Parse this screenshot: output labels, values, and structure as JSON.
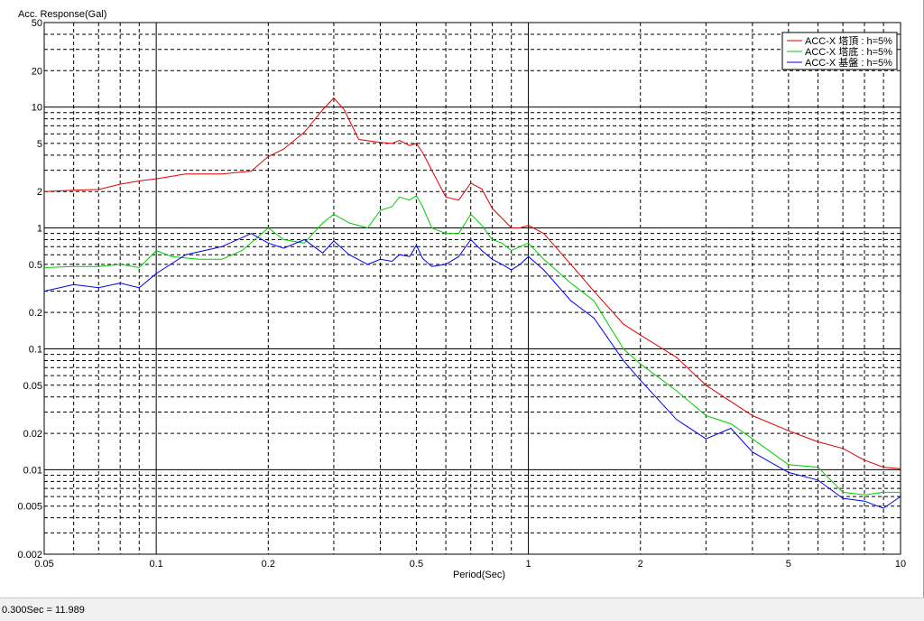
{
  "chart_data": {
    "type": "line",
    "ylabel": "Acc. Response(Gal)",
    "xlabel": "Period(Sec)",
    "xscale": "log",
    "yscale": "log",
    "xlim": [
      0.05,
      10
    ],
    "ylim": [
      0.002,
      50
    ],
    "grid": true,
    "legend_position": "top-right",
    "x_ticks": [
      0.05,
      0.1,
      0.2,
      0.5,
      1,
      2,
      5,
      10
    ],
    "x_tick_labels": [
      "0.05",
      "0.1",
      "0.2",
      "0.5",
      "1",
      "2",
      "5",
      "10"
    ],
    "y_ticks": [
      50,
      20,
      10,
      5,
      2,
      1,
      0.5,
      0.2,
      0.1,
      0.05,
      0.02,
      0.01,
      0.005,
      0.002
    ],
    "y_tick_labels": [
      "50",
      "20",
      "10",
      "5",
      "2",
      "1",
      "0.5",
      "0.2",
      "0.1",
      "0.05",
      "0.02",
      "0.01",
      "0.005",
      "0.002"
    ],
    "series": [
      {
        "name": "ACC-X 塔頂 : h=5%",
        "color": "#e00000",
        "x": [
          0.05,
          0.06,
          0.07,
          0.08,
          0.09,
          0.1,
          0.12,
          0.15,
          0.18,
          0.2,
          0.22,
          0.25,
          0.28,
          0.3,
          0.32,
          0.35,
          0.4,
          0.43,
          0.45,
          0.48,
          0.5,
          0.52,
          0.55,
          0.6,
          0.65,
          0.7,
          0.75,
          0.8,
          0.85,
          0.9,
          0.95,
          1,
          1.1,
          1.3,
          1.5,
          1.8,
          2,
          2.5,
          3,
          4,
          5,
          6,
          7,
          8,
          9,
          10
        ],
        "y": [
          2.0,
          2.05,
          2.08,
          2.3,
          2.45,
          2.55,
          2.8,
          2.8,
          2.95,
          3.9,
          4.5,
          6.2,
          9.5,
          11.9,
          9.5,
          5.4,
          5.1,
          5.0,
          5.3,
          4.8,
          5.0,
          4.2,
          3.0,
          1.8,
          1.7,
          2.35,
          2.1,
          1.45,
          1.2,
          1.0,
          1.0,
          1.05,
          0.9,
          0.5,
          0.3,
          0.16,
          0.13,
          0.085,
          0.05,
          0.028,
          0.021,
          0.017,
          0.015,
          0.012,
          0.0105,
          0.0102
        ]
      },
      {
        "name": "ACC-X 塔底 : h=5%",
        "color": "#00cc00",
        "x": [
          0.05,
          0.06,
          0.07,
          0.08,
          0.09,
          0.1,
          0.11,
          0.13,
          0.15,
          0.17,
          0.2,
          0.22,
          0.25,
          0.28,
          0.3,
          0.33,
          0.37,
          0.4,
          0.43,
          0.45,
          0.48,
          0.5,
          0.52,
          0.55,
          0.6,
          0.65,
          0.7,
          0.75,
          0.8,
          0.85,
          0.9,
          0.95,
          1,
          1.1,
          1.3,
          1.5,
          1.8,
          2,
          2.5,
          3,
          3.5,
          4,
          5,
          6,
          7,
          8,
          9,
          10
        ],
        "y": [
          0.47,
          0.48,
          0.48,
          0.5,
          0.47,
          0.65,
          0.58,
          0.55,
          0.55,
          0.65,
          1.0,
          0.8,
          0.75,
          1.1,
          1.3,
          1.1,
          1.0,
          1.4,
          1.5,
          1.8,
          1.7,
          1.85,
          1.5,
          1.0,
          0.9,
          0.9,
          1.3,
          1.05,
          0.8,
          0.75,
          0.65,
          0.7,
          0.75,
          0.55,
          0.35,
          0.25,
          0.1,
          0.075,
          0.045,
          0.028,
          0.024,
          0.018,
          0.011,
          0.0105,
          0.0065,
          0.0062,
          0.0065,
          0.0065
        ]
      },
      {
        "name": "ACC-X 基盤 : h=5%",
        "color": "#0000ee",
        "x": [
          0.05,
          0.06,
          0.07,
          0.08,
          0.09,
          0.1,
          0.12,
          0.15,
          0.18,
          0.2,
          0.22,
          0.25,
          0.28,
          0.3,
          0.33,
          0.37,
          0.4,
          0.43,
          0.45,
          0.48,
          0.5,
          0.52,
          0.55,
          0.6,
          0.65,
          0.7,
          0.75,
          0.8,
          0.85,
          0.9,
          0.95,
          1,
          1.1,
          1.3,
          1.5,
          1.8,
          2,
          2.5,
          3,
          3.5,
          4,
          5,
          6,
          7,
          8,
          9,
          10
        ],
        "y": [
          0.3,
          0.34,
          0.32,
          0.35,
          0.32,
          0.42,
          0.6,
          0.7,
          0.9,
          0.75,
          0.68,
          0.8,
          0.62,
          0.78,
          0.6,
          0.5,
          0.55,
          0.53,
          0.6,
          0.58,
          0.72,
          0.56,
          0.48,
          0.5,
          0.58,
          0.8,
          0.65,
          0.55,
          0.5,
          0.45,
          0.5,
          0.58,
          0.45,
          0.25,
          0.18,
          0.08,
          0.055,
          0.026,
          0.018,
          0.022,
          0.014,
          0.0095,
          0.0082,
          0.0058,
          0.0055,
          0.0048,
          0.006
        ]
      }
    ]
  },
  "status_bar": {
    "text": "0.300Sec = 11.989"
  }
}
